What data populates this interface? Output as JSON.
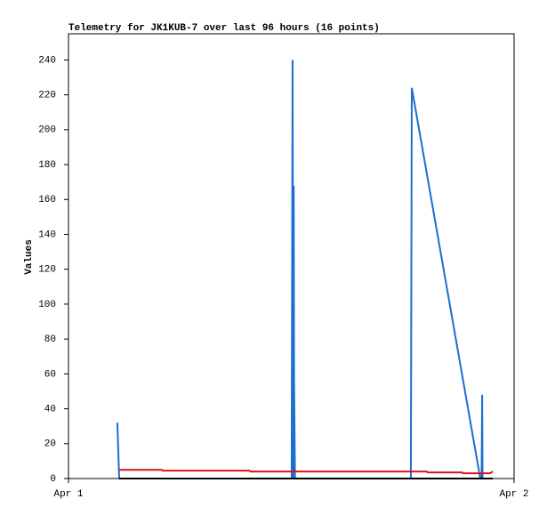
{
  "chart_data": {
    "type": "line",
    "title": "Telemetry for JK1KUB-7 over last 96 hours (16 points)",
    "y_label": "Values",
    "xlim": [
      0,
      24
    ],
    "xticks": [
      {
        "value": 0,
        "label": "Apr 1"
      },
      {
        "value": 24,
        "label": "Apr 2"
      }
    ],
    "ylim": [
      0,
      255
    ],
    "yticks": [
      0,
      20,
      40,
      60,
      80,
      100,
      120,
      140,
      160,
      180,
      200,
      220,
      240
    ],
    "series": [
      {
        "color": "#1a6fd0",
        "x": [
          2.63,
          2.68,
          2.73,
          12.02,
          12.07,
          12.1,
          12.13,
          12.15,
          12.2,
          18.44,
          18.49,
          22.18,
          22.25,
          22.28,
          22.3,
          22.32
        ],
        "values": [
          32,
          17,
          0,
          0,
          240,
          0,
          168,
          56,
          0,
          0,
          224,
          0,
          0,
          48,
          0,
          0
        ]
      },
      {
        "color": "#e01010",
        "x": [
          2.73,
          5.03,
          5.08,
          9.75,
          9.8,
          19.3,
          19.35,
          21.2,
          21.25,
          22.7,
          22.85
        ],
        "values": [
          5,
          5,
          4.5,
          4.5,
          4,
          4,
          3.5,
          3.5,
          3,
          3,
          4
        ]
      },
      {
        "color": "#000000",
        "x": [
          2.73,
          22.85
        ],
        "values": [
          0,
          0
        ]
      }
    ]
  }
}
